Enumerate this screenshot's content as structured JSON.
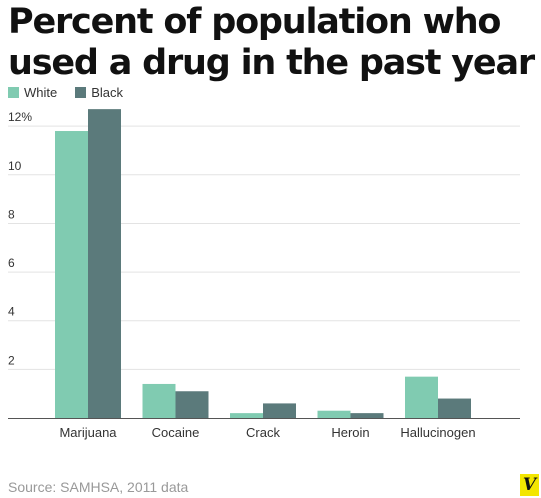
{
  "chart_data": {
    "type": "bar",
    "title": "Percent of population who used a drug in the past year",
    "categories": [
      "Marijuana",
      "Cocaine",
      "Crack",
      "Heroin",
      "Hallucinogen"
    ],
    "series": [
      {
        "name": "White",
        "color": "#80cbb1",
        "values": [
          11.8,
          1.4,
          0.2,
          0.3,
          1.7
        ]
      },
      {
        "name": "Black",
        "color": "#5b7a7b",
        "values": [
          12.7,
          1.1,
          0.6,
          0.2,
          0.8
        ]
      }
    ],
    "y_ticks": [
      {
        "value": 2,
        "label": "2"
      },
      {
        "value": 4,
        "label": "4"
      },
      {
        "value": 6,
        "label": "6"
      },
      {
        "value": 8,
        "label": "8"
      },
      {
        "value": 10,
        "label": "10"
      },
      {
        "value": 12,
        "label": "12%"
      }
    ],
    "ylim": [
      0,
      12.5
    ],
    "grid": true,
    "legend_position": "top-left",
    "source": "Source: SAMHSA, 2011 data"
  },
  "branding": {
    "logo_letter": "V",
    "logo_color": "#f3e600"
  }
}
